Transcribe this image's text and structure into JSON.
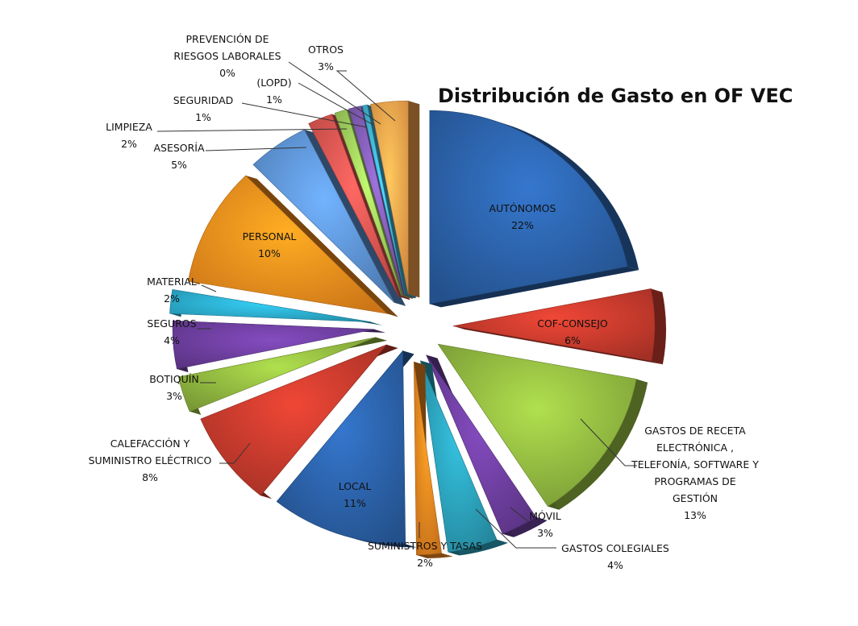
{
  "chart_data": {
    "type": "pie",
    "style": "3d-exploded",
    "title": "Distribución de Gasto en OF VEC",
    "slices": [
      {
        "label": "AUTÓNOMOS",
        "percent_label": "22%",
        "value": 22,
        "color": "#2A5FA5"
      },
      {
        "label": "COF-CONSEJO",
        "percent_label": "6%",
        "value": 6,
        "color": "#C0392B"
      },
      {
        "label": "GASTOS DE RECETA ELECTRÓNICA , TELEFONÍA, SOFTWARE Y PROGRAMAS DE GESTIÓN",
        "percent_label": "13%",
        "value": 13,
        "color": "#8DB33E"
      },
      {
        "label": "MÓVIL",
        "percent_label": "3%",
        "value": 3,
        "color": "#6A3D9A"
      },
      {
        "label": "GASTOS COLEGIALES",
        "percent_label": "4%",
        "value": 4,
        "color": "#2A9DB5"
      },
      {
        "label": "SUMINISTROS  Y TASAS",
        "percent_label": "2%",
        "value": 2,
        "color": "#E8821E"
      },
      {
        "label": "LOCAL",
        "percent_label": "11%",
        "value": 11,
        "color": "#2A5FA5"
      },
      {
        "label": "CALEFACCIÓN Y SUMINISTRO  ELÉCTRICO",
        "percent_label": "8%",
        "value": 8,
        "color": "#C0392B"
      },
      {
        "label": "BOTIQUÍN",
        "percent_label": "3%",
        "value": 3,
        "color": "#8DB33E"
      },
      {
        "label": "SEGUROS",
        "percent_label": "4%",
        "value": 4,
        "color": "#6A3D9A"
      },
      {
        "label": "MATERIAL",
        "percent_label": "2%",
        "value": 2,
        "color": "#2AA8C8"
      },
      {
        "label": "PERSONAL",
        "percent_label": "10%",
        "value": 10,
        "color": "#F08A1C"
      },
      {
        "label": "ASESORÍA",
        "percent_label": "5%",
        "value": 5,
        "color": "#5B8FD0"
      },
      {
        "label": "LIMPIEZA",
        "percent_label": "2%",
        "value": 2,
        "color": "#D9534F"
      },
      {
        "label": "SEGURIDAD",
        "percent_label": "1%",
        "value": 1,
        "color": "#9BC95A"
      },
      {
        "label": "(LOPD)",
        "percent_label": "1%",
        "value": 1,
        "color": "#7E5BB0"
      },
      {
        "label": "PREVENCIÓN  DE RIESGOS  LABORALES",
        "percent_label": "0%",
        "value": 0.4,
        "color": "#3FB0CF"
      },
      {
        "label": "OTROS",
        "percent_label": "3%",
        "value": 3,
        "color": "#F5A04A"
      }
    ]
  }
}
